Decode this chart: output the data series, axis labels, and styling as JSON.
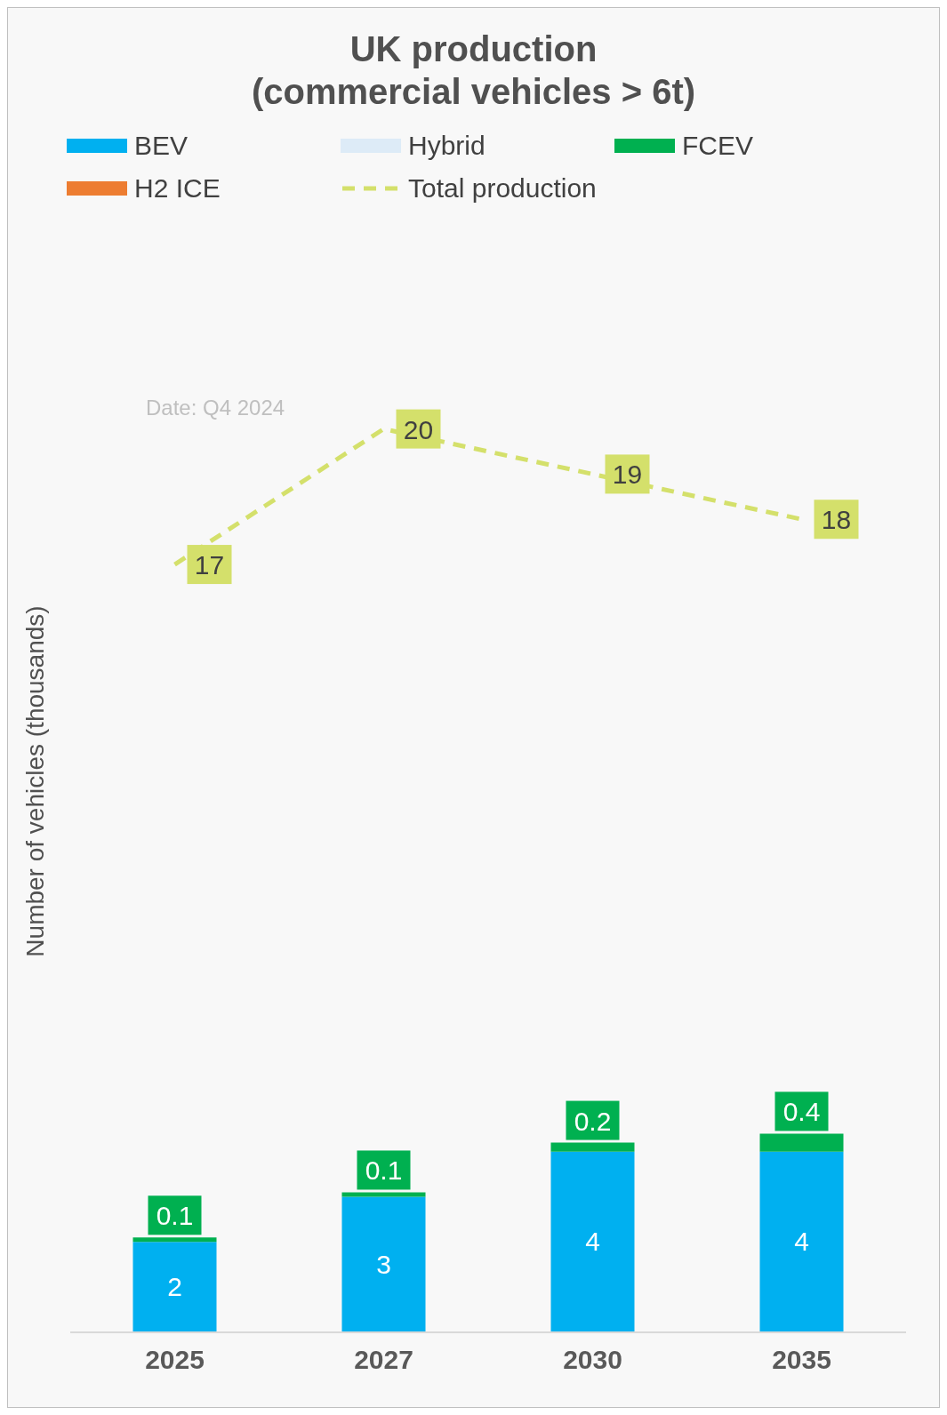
{
  "chart_data": {
    "type": "bar",
    "title": "UK production\n(commercial vehicles > 6t)",
    "ylabel": "Number of vehicles (thousands)",
    "annotations": [
      "Date: Q4 2024"
    ],
    "categories": [
      "2025",
      "2027",
      "2030",
      "2035"
    ],
    "stacked": true,
    "data_labels": true,
    "legend": "top left",
    "grid": false,
    "series": [
      {
        "name": "BEV",
        "color": "#00b0f0",
        "values": [
          2,
          3,
          4,
          4
        ]
      },
      {
        "name": "Hybrid",
        "color": "#ddebf7",
        "values": [
          null,
          null,
          null,
          null
        ]
      },
      {
        "name": "FCEV",
        "color": "#00b050",
        "values": [
          0.1,
          0.1,
          0.2,
          0.4
        ]
      },
      {
        "name": "H2 ICE",
        "color": "#ed7d31",
        "values": [
          null,
          null,
          null,
          null
        ]
      },
      {
        "name": "Total production",
        "type": "line",
        "line_style": "dashed",
        "marker": "none",
        "color": "#d4e06b",
        "values": [
          17,
          20,
          19,
          18
        ]
      }
    ]
  }
}
